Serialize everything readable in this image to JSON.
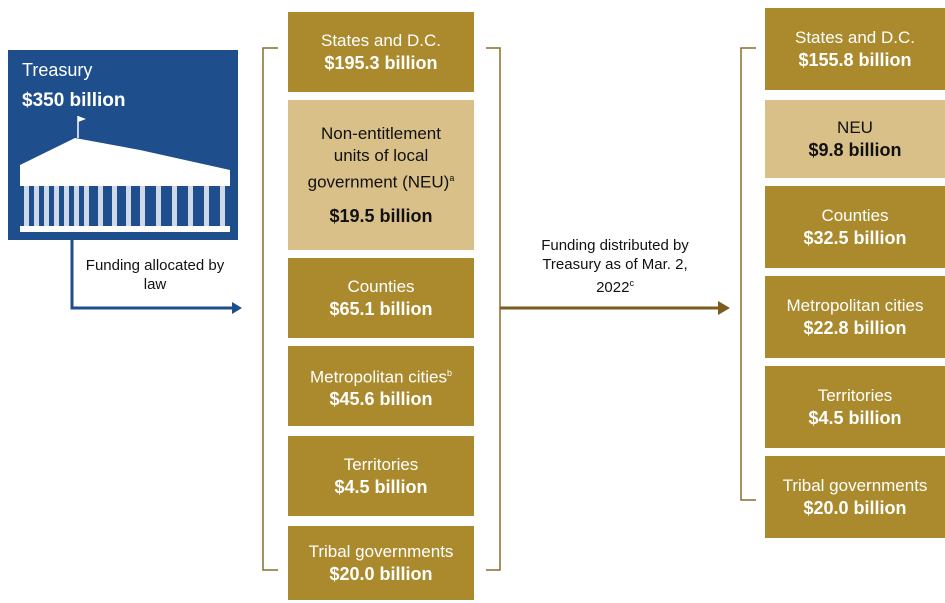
{
  "treasury": {
    "label": "Treasury",
    "amount": "$350 billion"
  },
  "allocation_arrow": {
    "label": "Funding allocated by law"
  },
  "allocated": [
    {
      "name": "States and D.C.",
      "amount": "$195.3 billion"
    },
    {
      "name": "Non-entitlement units of local government (NEU)",
      "note": "a",
      "amount": "$19.5 billion"
    },
    {
      "name": "Counties",
      "amount": "$65.1 billion"
    },
    {
      "name": "Metropolitan cities",
      "note": "b",
      "amount": "$45.6 billion"
    },
    {
      "name": "Territories",
      "amount": "$4.5 billion"
    },
    {
      "name": "Tribal governments",
      "amount": "$20.0 billion"
    }
  ],
  "distribution_arrow": {
    "label": "Funding distributed by Treasury as of Mar. 2, 2022",
    "note": "c"
  },
  "distributed": [
    {
      "name": "States and D.C.",
      "amount": "$155.8 billion"
    },
    {
      "name": "NEU",
      "amount": "$9.8 billion"
    },
    {
      "name": "Counties",
      "amount": "$32.5 billion"
    },
    {
      "name": "Metropolitan cities",
      "amount": "$22.8 billion"
    },
    {
      "name": "Territories",
      "amount": "$4.5 billion"
    },
    {
      "name": "Tribal governments",
      "amount": "$20.0 billion"
    }
  ]
}
